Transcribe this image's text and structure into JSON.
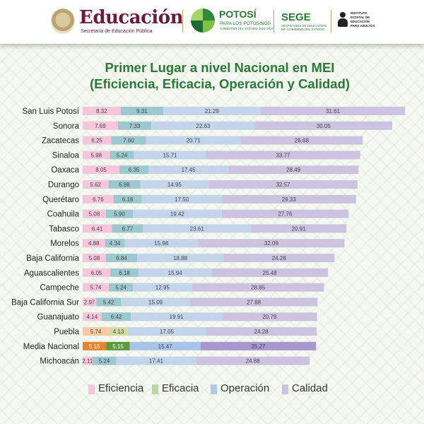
{
  "header": {
    "edu_title": "Educación",
    "edu_subtitle": "Secretaría de Educación Pública",
    "potosi_title": "POTOSÍ",
    "potosi_line1": "PARA LOS POTOSINOS",
    "potosi_line2": "GOBIERNO DEL ESTADO 2021-2027",
    "sege_title": "SEGE",
    "sege_line1": "SECRETARÍA DE EDUCACIÓN",
    "sege_line2": "DE GOBIERNO DEL ESTADO",
    "ieea_lines": [
      "INSTITUTO",
      "ESTATAL DE",
      "EDUCACIÓN",
      "PARA ADULTOS"
    ]
  },
  "chart_data": {
    "type": "bar",
    "orientation": "horizontal",
    "stacked": true,
    "title_line1": "Primer Lugar a nivel Nacional en MEI",
    "title_line2": "(Eficiencia, Eficacia, Operación y Calidad)",
    "categories": [
      "San Luis Potosí",
      "Sonora",
      "Zacatecas",
      "Sinaloa",
      "Oaxaca",
      "Durango",
      "Querétaro",
      "Coahuila",
      "Tabasco",
      "Morelos",
      "Baja California",
      "Aguascalientes",
      "Campeche",
      "Baja California Sur",
      "Guanajuato",
      "Puebla",
      "Media Nacional",
      "Michoacán"
    ],
    "series": [
      {
        "name": "Eficiencia",
        "color": "#f6c6dd",
        "values": [
          8.32,
          7.69,
          6.25,
          5.98,
          8.05,
          5.62,
          6.76,
          5.08,
          6.41,
          4.88,
          5.08,
          6.05,
          5.74,
          2.97,
          4.14,
          5.74,
          5.15,
          2.11
        ]
      },
      {
        "name": "Eficacia",
        "color": "#9ec8cf",
        "values": [
          9.31,
          7.33,
          7.6,
          5.24,
          6.35,
          6.98,
          6.18,
          5.9,
          6.77,
          4.34,
          6.84,
          6.18,
          5.24,
          5.42,
          6.42,
          4.13,
          5.15,
          5.24
        ]
      },
      {
        "name": "Operación",
        "color": "#c4d4ea",
        "values": [
          21.29,
          22.63,
          20.71,
          15.71,
          17.45,
          14.95,
          17.5,
          19.42,
          23.61,
          15.98,
          18.88,
          15.94,
          12.95,
          15.09,
          19.91,
          17.05,
          15.47,
          17.41
        ]
      },
      {
        "name": "Calidad",
        "color": "#cbc3e0",
        "values": [
          31.61,
          30.05,
          26.68,
          33.77,
          28.49,
          32.57,
          29.33,
          27.76,
          20.91,
          32.09,
          24.28,
          25.48,
          28.85,
          27.88,
          20.79,
          24.28,
          25.27,
          24.88
        ]
      }
    ],
    "highlight_colors": {
      "Puebla": [
        "#f7c9a4",
        "#cfdca3",
        "#c4d4ea",
        "#cbc3e0"
      ],
      "Media Nacional": [
        "#e8822d",
        "#5d9a3c",
        "#a9c3e6",
        "#a797cf"
      ]
    },
    "legend": {
      "position": "bottom",
      "entries": [
        {
          "name": "Eficiencia",
          "color": "#f6c6dd"
        },
        {
          "name": "Eficacia",
          "color": "#b9d7a0"
        },
        {
          "name": "Operación",
          "color": "#b2c9e8"
        },
        {
          "name": "Calidad",
          "color": "#cbc3e0"
        }
      ]
    },
    "xlim": [
      0,
      75
    ],
    "grid": false
  }
}
